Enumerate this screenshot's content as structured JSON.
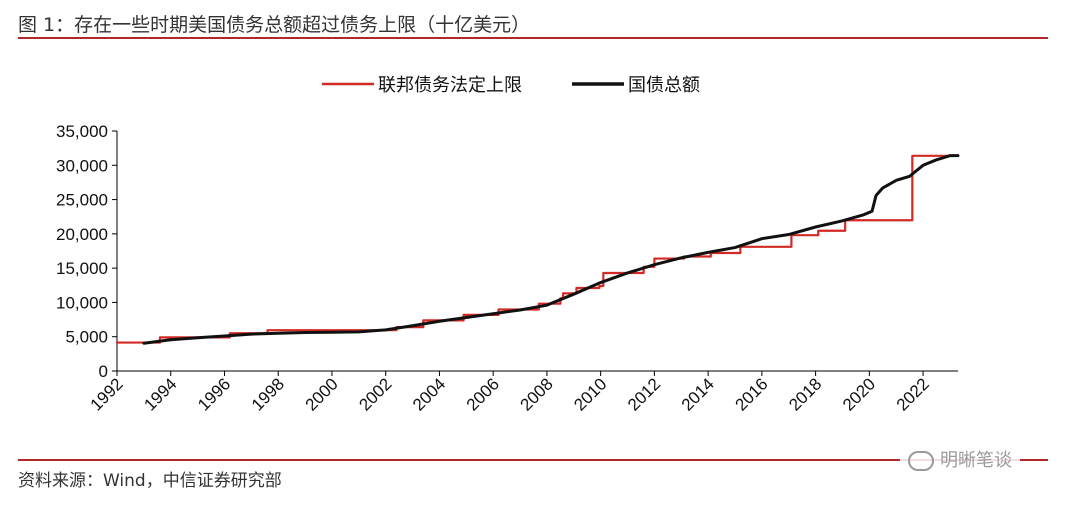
{
  "figure": {
    "title": "图 1：存在一些时期美国债务总额超过债务上限（十亿美元）",
    "source": "资料来源：Wind，中信证券研究部",
    "watermark": "明晰笔谈"
  },
  "colors": {
    "accent": "#b3272b",
    "limit": "#d42a26",
    "debt": "#111111"
  },
  "chart_data": {
    "type": "line",
    "title": "",
    "xlabel": "",
    "ylabel": "",
    "xlim": [
      1992,
      2023.3
    ],
    "ylim": [
      0,
      35000
    ],
    "y_ticks": [
      0,
      5000,
      10000,
      15000,
      20000,
      25000,
      30000,
      35000
    ],
    "y_tick_labels": [
      "0",
      "5,000",
      "10,000",
      "15,000",
      "20,000",
      "25,000",
      "30,000",
      "35,000"
    ],
    "x_ticks": [
      1992,
      1994,
      1996,
      1998,
      2000,
      2002,
      2004,
      2006,
      2008,
      2010,
      2012,
      2014,
      2016,
      2018,
      2020,
      2022
    ],
    "x_tick_labels": [
      "1992",
      "1994",
      "1996",
      "1998",
      "2000",
      "2002",
      "2004",
      "2006",
      "2008",
      "2010",
      "2012",
      "2014",
      "2016",
      "2018",
      "2020",
      "2022"
    ],
    "legend_position": "top-center",
    "grid": false,
    "series": [
      {
        "name": "联邦债务法定上限",
        "color": "#d42a26",
        "shape": "step",
        "points": [
          [
            1992,
            4145
          ],
          [
            1993.6,
            4900
          ],
          [
            1996.2,
            5500
          ],
          [
            1997.6,
            5950
          ],
          [
            2002.4,
            6400
          ],
          [
            2003.4,
            7384
          ],
          [
            2004.9,
            8184
          ],
          [
            2006.2,
            8965
          ],
          [
            2007.7,
            9815
          ],
          [
            2008.5,
            10615
          ],
          [
            2008.6,
            11315
          ],
          [
            2009.1,
            12104
          ],
          [
            2009.95,
            12394
          ],
          [
            2010.1,
            14294
          ],
          [
            2011.6,
            15194
          ],
          [
            2012.0,
            16394
          ],
          [
            2013.1,
            16699
          ],
          [
            2014.1,
            17212
          ],
          [
            2015.2,
            18113
          ],
          [
            2017.1,
            19808
          ],
          [
            2018.1,
            20456
          ],
          [
            2019.1,
            21988
          ],
          [
            2021.6,
            31381
          ],
          [
            2023.3,
            31381
          ]
        ]
      },
      {
        "name": "国债总额",
        "color": "#111111",
        "shape": "line",
        "points": [
          [
            1993,
            4050
          ],
          [
            1994,
            4550
          ],
          [
            1995,
            4850
          ],
          [
            1996,
            5100
          ],
          [
            1997,
            5380
          ],
          [
            1998,
            5500
          ],
          [
            1999,
            5620
          ],
          [
            2000,
            5650
          ],
          [
            2001,
            5700
          ],
          [
            2002,
            6000
          ],
          [
            2003,
            6600
          ],
          [
            2004,
            7250
          ],
          [
            2005,
            7800
          ],
          [
            2006,
            8350
          ],
          [
            2007,
            8900
          ],
          [
            2008,
            9600
          ],
          [
            2009,
            11200
          ],
          [
            2010,
            12900
          ],
          [
            2011,
            14300
          ],
          [
            2012,
            15500
          ],
          [
            2013,
            16500
          ],
          [
            2014,
            17300
          ],
          [
            2015,
            18000
          ],
          [
            2016,
            19300
          ],
          [
            2017,
            19900
          ],
          [
            2018,
            21000
          ],
          [
            2019,
            21900
          ],
          [
            2019.8,
            22800
          ],
          [
            2020.1,
            23300
          ],
          [
            2020.25,
            25600
          ],
          [
            2020.5,
            26700
          ],
          [
            2021,
            27800
          ],
          [
            2021.5,
            28400
          ],
          [
            2022,
            30000
          ],
          [
            2022.5,
            30800
          ],
          [
            2023,
            31400
          ],
          [
            2023.3,
            31400
          ]
        ]
      }
    ]
  }
}
